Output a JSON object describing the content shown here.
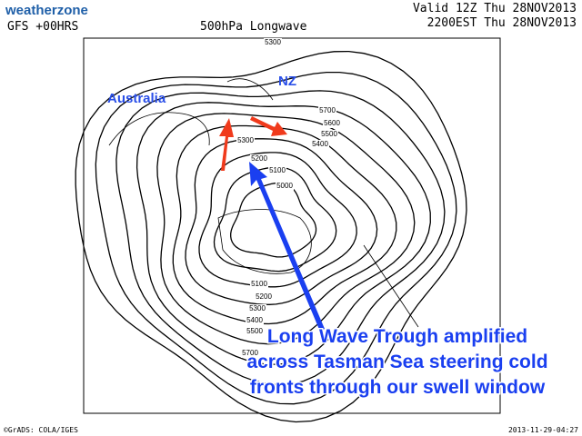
{
  "header": {
    "logo": "weatherzone",
    "model": "GFS +00HRS",
    "title": "500hPa Longwave",
    "valid": "Valid 12Z Thu 28NOV2013",
    "local": "2200EST Thu 28NOV2013"
  },
  "labels": {
    "australia": "Australia",
    "nz": "NZ"
  },
  "contour_labels": [
    5300,
    5700,
    5600,
    5500,
    5400,
    5300,
    5200,
    5100,
    5000,
    5100,
    5200,
    5300,
    5400,
    5500,
    5700
  ],
  "annotation": [
    "Long Wave Trough amplified",
    "across Tasman Sea steering cold",
    "fronts through our swell window"
  ],
  "footer": {
    "credit": "©GrADS: COLA/IGES",
    "timestamp": "2013-11-29-04:27"
  }
}
